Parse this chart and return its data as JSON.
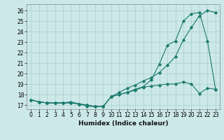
{
  "xlabel": "Humidex (Indice chaleur)",
  "background_color": "#cce8e8",
  "grid_color": "#aacccc",
  "line_color": "#1a7a6e",
  "xlim": [
    -0.5,
    23.5
  ],
  "ylim": [
    16.6,
    26.6
  ],
  "xticks": [
    0,
    1,
    2,
    3,
    4,
    5,
    6,
    7,
    8,
    9,
    10,
    11,
    12,
    13,
    14,
    15,
    16,
    17,
    18,
    19,
    20,
    21,
    22,
    23
  ],
  "yticks": [
    17,
    18,
    19,
    20,
    21,
    22,
    23,
    24,
    25,
    26
  ],
  "line1_x": [
    0,
    1,
    2,
    3,
    4,
    5,
    6,
    7,
    8,
    9,
    10,
    11,
    12,
    13,
    14,
    15,
    16,
    17,
    18,
    19,
    20,
    21,
    22,
    23
  ],
  "line1_y": [
    17.5,
    17.3,
    17.2,
    17.2,
    17.2,
    17.3,
    17.1,
    16.9,
    16.85,
    16.85,
    17.8,
    18.2,
    18.6,
    18.9,
    19.3,
    19.6,
    20.1,
    20.8,
    21.6,
    23.2,
    24.4,
    25.5,
    26.0,
    25.8
  ],
  "line2_x": [
    0,
    1,
    2,
    3,
    4,
    5,
    6,
    7,
    8,
    9,
    10,
    11,
    12,
    13,
    14,
    15,
    16,
    17,
    18,
    19,
    20,
    21,
    22,
    23
  ],
  "line2_y": [
    17.5,
    17.3,
    17.2,
    17.2,
    17.2,
    17.2,
    17.1,
    17.0,
    16.85,
    16.85,
    17.8,
    18.0,
    18.2,
    18.5,
    18.75,
    19.4,
    20.9,
    22.7,
    23.1,
    25.0,
    25.7,
    25.8,
    23.1,
    18.5
  ],
  "line3_x": [
    0,
    1,
    2,
    3,
    4,
    5,
    6,
    7,
    8,
    9,
    10,
    11,
    12,
    13,
    14,
    15,
    16,
    17,
    18,
    19,
    20,
    21,
    22,
    23
  ],
  "line3_y": [
    17.5,
    17.3,
    17.2,
    17.2,
    17.2,
    17.2,
    17.1,
    17.0,
    16.85,
    16.85,
    17.8,
    18.0,
    18.2,
    18.4,
    18.7,
    18.8,
    18.9,
    19.0,
    19.0,
    19.2,
    19.0,
    18.1,
    18.6,
    18.5
  ],
  "tick_fontsize": 5.5,
  "xlabel_fontsize": 6.5
}
